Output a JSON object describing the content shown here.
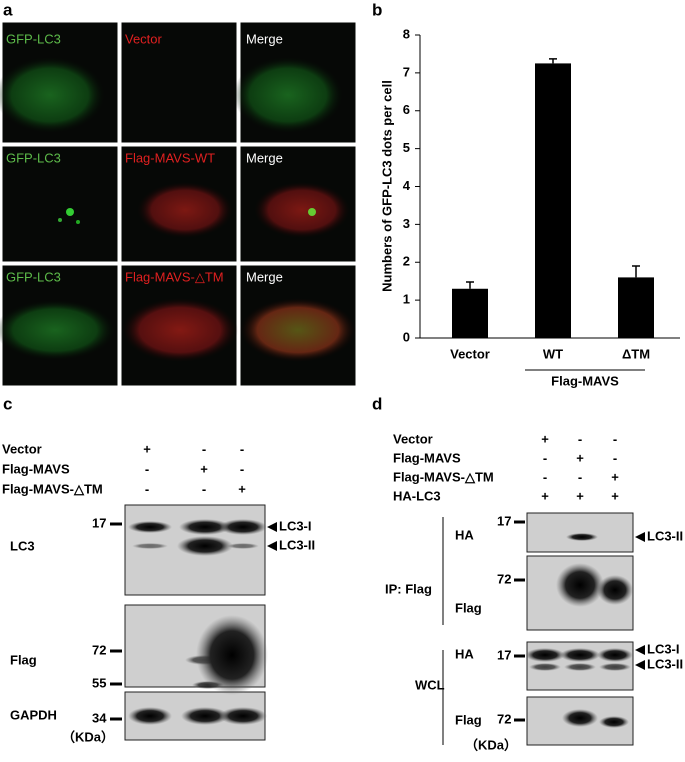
{
  "panel_a": {
    "label": "a",
    "rows": [
      [
        "GFP-LC3",
        "Vector",
        "Merge"
      ],
      [
        "GFP-LC3",
        "Flag-MAVS-WT",
        "Merge"
      ],
      [
        "GFP-LC3",
        "Flag-MAVS-△TM",
        "Merge"
      ]
    ]
  },
  "chart_data": {
    "type": "bar",
    "panel_label": "b",
    "y_label": "Numbers of GFP-LC3 dots per cell",
    "categories": [
      "Vector",
      "WT",
      "ΔTM"
    ],
    "values": [
      1.3,
      7.25,
      1.6
    ],
    "errors": [
      0.18,
      0.12,
      0.3
    ],
    "group_label": "Flag-MAVS",
    "color": "#000000",
    "ylim": [
      0,
      8
    ],
    "yticks": [
      0,
      1,
      2,
      3,
      4,
      5,
      6,
      7,
      8
    ]
  },
  "panel_c": {
    "label": "c",
    "rows": [
      {
        "label": "Vector",
        "signs": [
          "+",
          "-",
          "-"
        ]
      },
      {
        "label": "Flag-MAVS",
        "signs": [
          "-",
          "+",
          "-"
        ]
      },
      {
        "label": "Flag-MAVS-△TM",
        "signs": [
          "-",
          "-",
          "+"
        ]
      }
    ],
    "blots": [
      "LC3",
      "Flag",
      "GAPDH"
    ],
    "markers": [
      "17",
      "72",
      "55",
      "34"
    ],
    "unit": "（KDa）",
    "bands": [
      "LC3-I",
      "LC3-II"
    ]
  },
  "panel_d": {
    "label": "d",
    "rows": [
      {
        "label": "Vector",
        "signs": [
          "+",
          "-",
          "-"
        ]
      },
      {
        "label": "Flag-MAVS",
        "signs": [
          "-",
          "+",
          "-"
        ]
      },
      {
        "label": "Flag-MAVS-△TM",
        "signs": [
          "-",
          "-",
          "+"
        ]
      },
      {
        "label": "HA-LC3",
        "signs": [
          "+",
          "+",
          "+"
        ]
      }
    ],
    "groups": [
      "IP: Flag",
      "WCL"
    ],
    "blots": [
      "HA",
      "Flag",
      "HA",
      "Flag"
    ],
    "markers": [
      "17",
      "72",
      "17",
      "72"
    ],
    "unit": "（KDa）",
    "bands": [
      "LC3-II",
      "LC3-I",
      "LC3-II"
    ]
  }
}
